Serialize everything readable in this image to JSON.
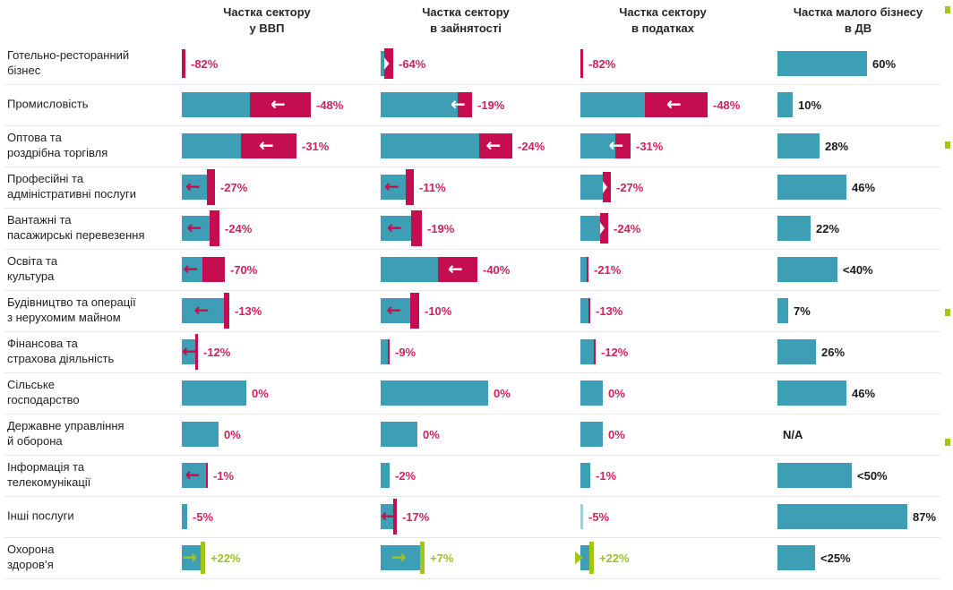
{
  "colors": {
    "teal": "#3D9EB5",
    "decline_red": "#C50E50",
    "label_crimson": "#D2205F",
    "growth_green": "#A2C516",
    "text": "#1F1F1F",
    "divider": "#E6E6E6"
  },
  "bullets": [
    7,
    158,
    345,
    490
  ],
  "chart_data": {
    "type": "bar",
    "layout": "table of horizontal bars; teal = sector share, red segment with left arrow = decline %, green = growth %",
    "columns": [
      "Частка сектору\nу ВВП",
      "Частка сектору\nв зайнятості",
      "Частка сектору\nв податках",
      "Частка малого бізнесу\nв ДВ"
    ],
    "rows": [
      {
        "sector": "Готельно-ресторанний\nбізнес",
        "values": {
          "gdp": "-82%",
          "employment": "-64%",
          "taxes": "-82%",
          "small_business": "60%"
        },
        "cells": [
          {
            "t": 0,
            "r": 4,
            "rs": "stub",
            "v": "-82%",
            "vc": "neg"
          },
          {
            "t": 4,
            "r": 10,
            "rs": "notch",
            "v": "-64%",
            "vc": "neg"
          },
          {
            "t": 0,
            "r": 3,
            "rs": "stub",
            "v": "-82%",
            "vc": "neg"
          },
          {
            "t": 100,
            "v": "60%",
            "vc": "plain"
          }
        ]
      },
      {
        "sector": "Промисловість",
        "values": {
          "gdp": "-48%",
          "employment": "-19%",
          "taxes": "-48%",
          "small_business": "10%"
        },
        "cells": [
          {
            "t": 76,
            "r": 68,
            "rs": "flat",
            "a": "wl",
            "v": "-48%",
            "vc": "neg"
          },
          {
            "t": 86,
            "r": 16,
            "rs": "flat",
            "a": "wl",
            "v": "-19%",
            "vc": "neg"
          },
          {
            "t": 72,
            "r": 70,
            "rs": "flat",
            "a": "wl",
            "v": "-48%",
            "vc": "neg"
          },
          {
            "t": 17,
            "v": "10%",
            "vc": "plain"
          }
        ]
      },
      {
        "sector": "Оптова та\nроздрібна торгівля",
        "values": {
          "gdp": "-31%",
          "employment": "-24%",
          "taxes": "-31%",
          "small_business": "28%"
        },
        "cells": [
          {
            "t": 66,
            "r": 62,
            "rs": "flat",
            "a": "wl",
            "v": "-31%",
            "vc": "neg"
          },
          {
            "t": 110,
            "r": 37,
            "rs": "flat",
            "a": "wl",
            "v": "-24%",
            "vc": "neg"
          },
          {
            "t": 39,
            "r": 17,
            "rs": "flat",
            "a": "wl",
            "v": "-31%",
            "vc": "neg"
          },
          {
            "t": 47,
            "v": "28%",
            "vc": "plain"
          }
        ]
      },
      {
        "sector": "Професійні та\nадміністративні послуги",
        "values": {
          "gdp": "-27%",
          "employment": "-11%",
          "taxes": "-27%",
          "small_business": "46%"
        },
        "cells": [
          {
            "t": 28,
            "r": 9,
            "rs": "tall",
            "a": "rl",
            "v": "-27%",
            "vc": "neg"
          },
          {
            "t": 28,
            "r": 9,
            "rs": "tall",
            "a": "rl",
            "v": "-11%",
            "vc": "neg"
          },
          {
            "t": 25,
            "r": 9,
            "rs": "notch",
            "v": "-27%",
            "vc": "neg"
          },
          {
            "t": 77,
            "v": "46%",
            "vc": "plain"
          }
        ]
      },
      {
        "sector": "Вантажні та\nпасажирські перевезення",
        "values": {
          "gdp": "-24%",
          "employment": "-19%",
          "taxes": "-24%",
          "small_business": "22%"
        },
        "cells": [
          {
            "t": 31,
            "r": 11,
            "rs": "tall",
            "a": "rl",
            "v": "-24%",
            "vc": "neg"
          },
          {
            "t": 34,
            "r": 12,
            "rs": "tall",
            "a": "rl",
            "v": "-19%",
            "vc": "neg"
          },
          {
            "t": 22,
            "r": 9,
            "rs": "notch",
            "v": "-24%",
            "vc": "neg"
          },
          {
            "t": 37,
            "v": "22%",
            "vc": "plain"
          }
        ]
      },
      {
        "sector": "Освіта та\nкультура",
        "values": {
          "gdp": "-70%",
          "employment": "-40%",
          "taxes": "-21%",
          "small_business": "<40%"
        },
        "cells": [
          {
            "t": 23,
            "r": 25,
            "rs": "flat",
            "a": "rl",
            "v": "-70%",
            "vc": "neg"
          },
          {
            "t": 64,
            "r": 44,
            "rs": "flat",
            "a": "wl",
            "v": "-40%",
            "vc": "neg"
          },
          {
            "t": 7,
            "r": 2,
            "rs": "flat",
            "v": "-21%",
            "vc": "neg"
          },
          {
            "t": 67,
            "v": "<40%",
            "vc": "plain"
          }
        ]
      },
      {
        "sector": "Будівництво та операції\nз нерухомим майном",
        "values": {
          "gdp": "-13%",
          "employment": "-10%",
          "taxes": "-13%",
          "small_business": "7%"
        },
        "cells": [
          {
            "t": 47,
            "r": 6,
            "rs": "tall",
            "a": "rl",
            "v": "-13%",
            "vc": "neg"
          },
          {
            "t": 33,
            "r": 10,
            "rs": "tall",
            "a": "rl",
            "v": "-10%",
            "vc": "neg"
          },
          {
            "t": 9,
            "r": 2,
            "rs": "flat",
            "v": "-13%",
            "vc": "neg"
          },
          {
            "t": 12,
            "v": "7%",
            "vc": "plain"
          }
        ]
      },
      {
        "sector": "Фінансова та\nстрахова діяльність",
        "values": {
          "gdp": "-12%",
          "employment": "-9%",
          "taxes": "-12%",
          "small_business": "26%"
        },
        "cells": [
          {
            "t": 15,
            "r": 3,
            "rs": "tall",
            "a": "rl",
            "v": "-12%",
            "vc": "neg"
          },
          {
            "t": 8,
            "r": 2,
            "rs": "flat",
            "v": "-9%",
            "vc": "neg"
          },
          {
            "t": 15,
            "r": 2,
            "rs": "flat",
            "v": "-12%",
            "vc": "neg"
          },
          {
            "t": 43,
            "v": "26%",
            "vc": "plain"
          }
        ]
      },
      {
        "sector": "Сільське\nгосподарство",
        "values": {
          "gdp": "0%",
          "employment": "0%",
          "taxes": "0%",
          "small_business": "46%"
        },
        "cells": [
          {
            "t": 72,
            "v": "0%",
            "vc": "neg"
          },
          {
            "t": 120,
            "v": "0%",
            "vc": "neg"
          },
          {
            "t": 25,
            "v": "0%",
            "vc": "neg"
          },
          {
            "t": 77,
            "v": "46%",
            "vc": "plain"
          }
        ]
      },
      {
        "sector": "Державне управління\nй оборона",
        "values": {
          "gdp": "0%",
          "employment": "0%",
          "taxes": "0%",
          "small_business": "N/A"
        },
        "cells": [
          {
            "t": 41,
            "v": "0%",
            "vc": "neg"
          },
          {
            "t": 41,
            "v": "0%",
            "vc": "neg"
          },
          {
            "t": 25,
            "v": "0%",
            "vc": "neg"
          },
          {
            "t": 0,
            "v": "N/A",
            "vc": "plain"
          }
        ]
      },
      {
        "sector": "Інформація та\nтелекомунікації",
        "values": {
          "gdp": "-1%",
          "employment": "-2%",
          "taxes": "-1%",
          "small_business": "<50%"
        },
        "cells": [
          {
            "t": 27,
            "r": 2,
            "rs": "flat",
            "a": "rl",
            "v": "-1%",
            "vc": "neg"
          },
          {
            "t": 10,
            "v": "-2%",
            "vc": "neg"
          },
          {
            "t": 11,
            "v": "-1%",
            "vc": "neg"
          },
          {
            "t": 83,
            "v": "<50%",
            "vc": "plain"
          }
        ]
      },
      {
        "sector": "Інші послуги",
        "values": {
          "gdp": "-5%",
          "employment": "-17%",
          "taxes": "-5%",
          "small_business": "87%"
        },
        "cells": [
          {
            "t": 6,
            "v": "-5%",
            "vc": "neg"
          },
          {
            "t": 14,
            "r": 4,
            "rs": "tall",
            "a": "rl",
            "v": "-17%",
            "vc": "neg"
          },
          {
            "t": 3,
            "light": true,
            "v": "-5%",
            "vc": "neg"
          },
          {
            "t": 145,
            "v": "87%",
            "vc": "plain"
          }
        ]
      },
      {
        "sector": "Охорона\nздоров’я",
        "values": {
          "gdp": "+22%",
          "employment": "+7%",
          "taxes": "+22%",
          "small_business": "<25%"
        },
        "cells": [
          {
            "t": 21,
            "g": true,
            "a": "gr",
            "v": "+22%",
            "vc": "pos"
          },
          {
            "t": 44,
            "g": true,
            "a": "gr",
            "v": "+7%",
            "vc": "pos"
          },
          {
            "t": 10,
            "g": true,
            "gt": true,
            "v": "+22%",
            "vc": "pos"
          },
          {
            "t": 42,
            "v": "<25%",
            "vc": "plain"
          }
        ]
      }
    ]
  }
}
